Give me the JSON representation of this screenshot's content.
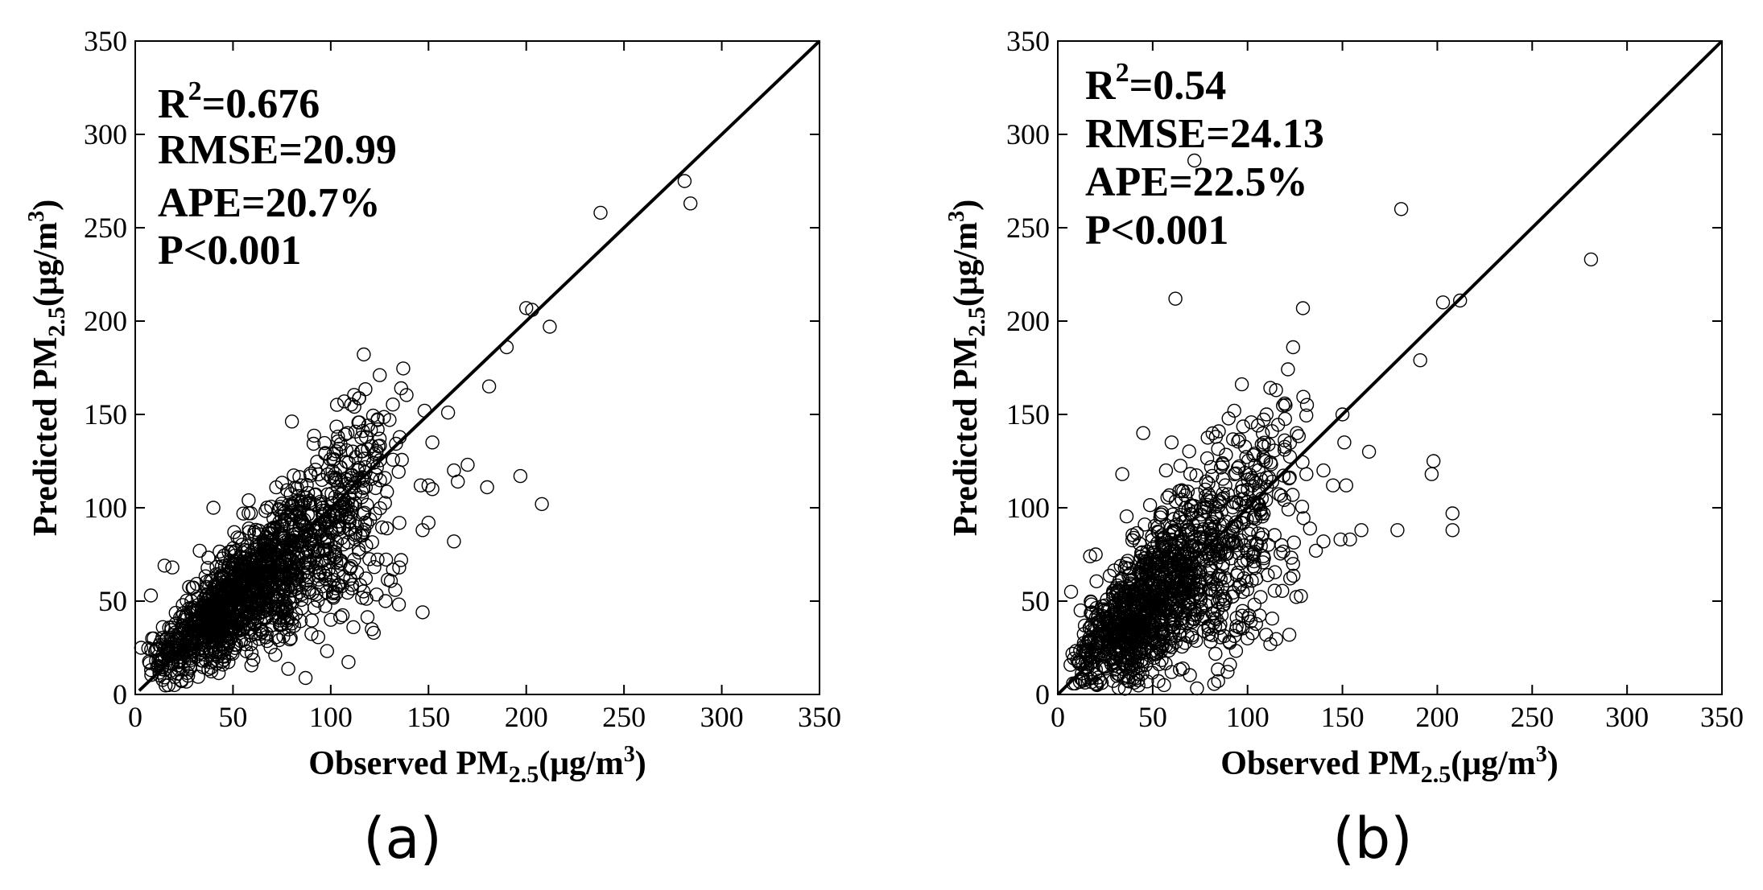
{
  "chart_data": [
    {
      "type": "scatter",
      "panel_label": "(a)",
      "xlabel": {
        "main": "Observed PM",
        "sub": "2.5",
        "unit": "(μg/m",
        "sup": "3",
        "close": ")"
      },
      "ylabel": {
        "main": "Predicted PM",
        "sub": "2.5",
        "unit": "(μg/m",
        "sup": "3",
        "close": ")"
      },
      "xlim": [
        0,
        350
      ],
      "ylim": [
        0,
        350
      ],
      "xticks": [
        0,
        50,
        100,
        150,
        200,
        250,
        300,
        350
      ],
      "yticks": [
        0,
        50,
        100,
        150,
        200,
        250,
        300,
        350
      ],
      "reference_line": {
        "from": [
          2,
          2
        ],
        "to": [
          350,
          350
        ]
      },
      "annotations": {
        "r2_label": "R",
        "r2_sup": "2",
        "r2_value": "=0.676",
        "rmse": "RMSE=20.99",
        "ape": "APE=20.7%",
        "p": "P<0.001"
      },
      "cluster": {
        "seed": 12345,
        "count": 1500,
        "slope": 0.82,
        "intercept": 9,
        "noise_scale": 0.2,
        "noise_base": 5,
        "x_min": 5,
        "x_max": 140,
        "x_mode": 45
      },
      "outliers": [
        [
          281,
          275
        ],
        [
          284,
          263
        ],
        [
          238,
          258
        ],
        [
          200,
          207
        ],
        [
          203,
          206
        ],
        [
          212,
          197
        ],
        [
          190,
          186
        ],
        [
          181,
          165
        ],
        [
          136,
          164
        ],
        [
          160,
          151
        ],
        [
          148,
          152
        ],
        [
          152,
          135
        ],
        [
          170,
          123
        ],
        [
          163,
          120
        ],
        [
          165,
          114
        ],
        [
          180,
          111
        ],
        [
          197,
          117
        ],
        [
          208,
          102
        ],
        [
          163,
          82
        ],
        [
          146,
          112
        ],
        [
          150,
          112
        ],
        [
          152,
          110
        ],
        [
          150,
          92
        ],
        [
          147,
          88
        ],
        [
          147,
          44
        ],
        [
          135,
          68
        ],
        [
          136,
          72
        ],
        [
          133,
          56
        ],
        [
          121,
          35
        ],
        [
          122,
          33
        ],
        [
          128,
          50
        ],
        [
          124,
          147
        ],
        [
          124,
          142
        ],
        [
          118,
          138
        ],
        [
          121,
          133
        ],
        [
          125,
          137
        ],
        [
          105,
          134
        ],
        [
          8,
          53
        ],
        [
          3,
          25
        ],
        [
          17,
          5
        ],
        [
          20,
          5
        ],
        [
          15,
          69
        ],
        [
          19,
          68
        ],
        [
          40,
          100
        ],
        [
          58,
          104
        ],
        [
          85,
          112
        ],
        [
          33,
          77
        ],
        [
          70,
          60
        ],
        [
          100,
          40
        ]
      ]
    },
    {
      "type": "scatter",
      "panel_label": "(b)",
      "xlabel": {
        "main": "Observed  PM",
        "sub": "2.5",
        "unit": "(μg/m",
        "sup": "3",
        "close": ")"
      },
      "ylabel": {
        "main": "Predicted PM",
        "sub": "2.5",
        "unit": "(μg/m",
        "sup": "3",
        "close": ")"
      },
      "xlim": [
        0,
        350
      ],
      "ylim": [
        0,
        350
      ],
      "xticks": [
        0,
        50,
        100,
        150,
        200,
        250,
        300,
        350
      ],
      "yticks": [
        0,
        50,
        100,
        150,
        200,
        250,
        300,
        350
      ],
      "reference_line": {
        "from": [
          0,
          0
        ],
        "to": [
          350,
          350
        ]
      },
      "annotations": {
        "r2_label": "R",
        "r2_sup": "2",
        "r2_value": "=0.54",
        "rmse": "RMSE=24.13",
        "ape": "APE=22.5%",
        "p": "P<0.001"
      },
      "cluster": {
        "seed": 67890,
        "count": 1300,
        "slope": 0.78,
        "intercept": 11,
        "noise_scale": 0.26,
        "noise_base": 6,
        "x_min": 5,
        "x_max": 135,
        "x_mode": 40
      },
      "outliers": [
        [
          72,
          286
        ],
        [
          181,
          260
        ],
        [
          62,
          212
        ],
        [
          281,
          233
        ],
        [
          203,
          210
        ],
        [
          212,
          211
        ],
        [
          191,
          179
        ],
        [
          124,
          186
        ],
        [
          115,
          163
        ],
        [
          110,
          150
        ],
        [
          93,
          152
        ],
        [
          120,
          155
        ],
        [
          150,
          150
        ],
        [
          126,
          140
        ],
        [
          164,
          130
        ],
        [
          151,
          135
        ],
        [
          131,
          118
        ],
        [
          45,
          140
        ],
        [
          34,
          118
        ],
        [
          60,
          135
        ],
        [
          57,
          120
        ],
        [
          198,
          125
        ],
        [
          197,
          118
        ],
        [
          208,
          97
        ],
        [
          208,
          88
        ],
        [
          179,
          88
        ],
        [
          160,
          88
        ],
        [
          149,
          83
        ],
        [
          154,
          83
        ],
        [
          140,
          82
        ],
        [
          136,
          77
        ],
        [
          122,
          32
        ],
        [
          112,
          27
        ],
        [
          56,
          5
        ],
        [
          47,
          7
        ],
        [
          20,
          75
        ],
        [
          17,
          74
        ],
        [
          7,
          55
        ],
        [
          12,
          45
        ],
        [
          100,
          30
        ],
        [
          60,
          12
        ],
        [
          140,
          120
        ],
        [
          145,
          112
        ],
        [
          152,
          112
        ]
      ]
    }
  ]
}
